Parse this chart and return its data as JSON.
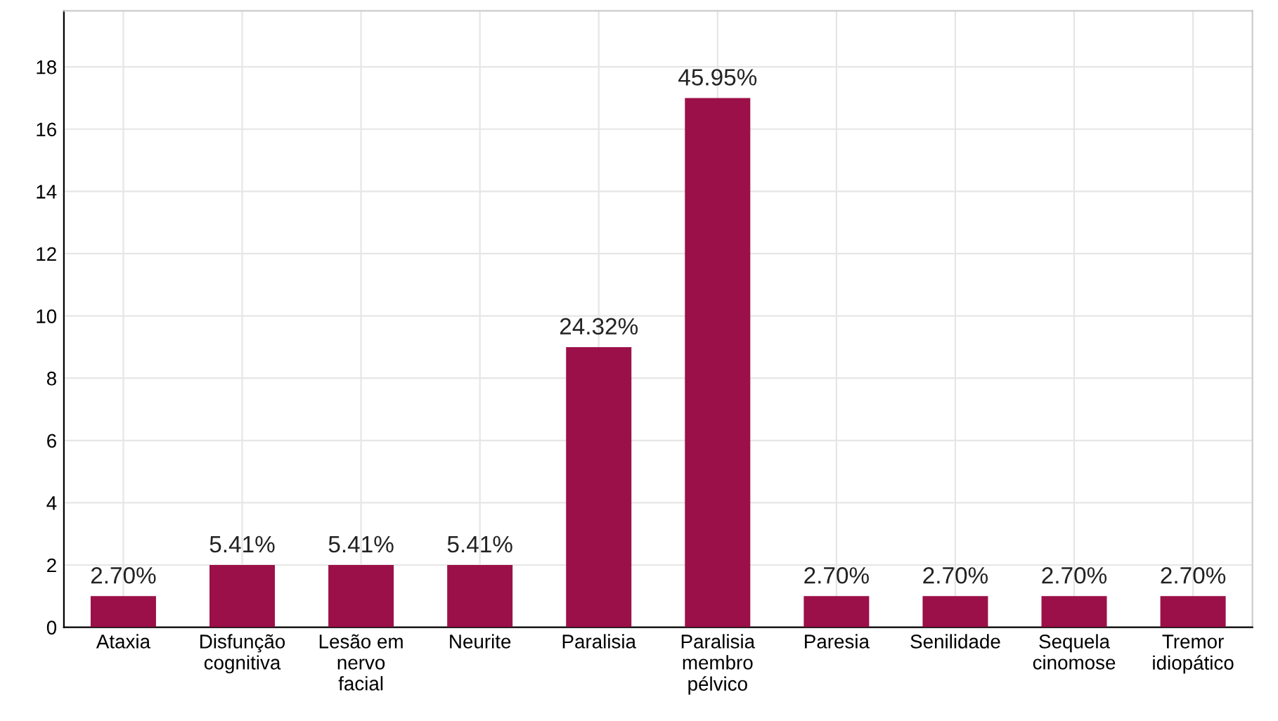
{
  "chart_data": {
    "type": "bar",
    "categories": [
      "Ataxia",
      "Disfunção\ncognitiva",
      "Lesão em\nnervo\nfacial",
      "Neurite",
      "Paralisia",
      "Paralisia\nmembro\npélvico",
      "Paresia",
      "Senilidade",
      "Sequela\ncinomose",
      "Tremor\nidiopático"
    ],
    "values": [
      1,
      2,
      2,
      2,
      9,
      17,
      1,
      1,
      1,
      1
    ],
    "annotations": [
      {
        "text": "2.70%",
        "x": "Ataxia",
        "y": 1
      },
      {
        "text": "5.41%",
        "x": "Disfunção\ncognitiva",
        "y": 2
      },
      {
        "text": "5.41%",
        "x": "Lesão em\nnervo\nfacial",
        "y": 2
      },
      {
        "text": "5.41%",
        "x": "Neurite",
        "y": 2
      },
      {
        "text": "24.32%",
        "x": "Paralisia",
        "y": 9
      },
      {
        "text": "45.95%",
        "x": "Paralisia\nmembro\npélvico",
        "y": 17
      },
      {
        "text": "2.70%",
        "x": "Paresia",
        "y": 1
      },
      {
        "text": "2.70%",
        "x": "Senilidade",
        "y": 1
      },
      {
        "text": "2.70%",
        "x": "Sequela\ncinomose",
        "y": 1
      },
      {
        "text": "2.70%",
        "x": "Tremor\nidiopático",
        "y": 1
      }
    ],
    "color": "#9b1048",
    "ylim": [
      0,
      19.8
    ],
    "yticks": [
      0,
      2,
      4,
      6,
      8,
      10,
      12,
      14,
      16,
      18
    ],
    "grid": true,
    "legend": false
  }
}
